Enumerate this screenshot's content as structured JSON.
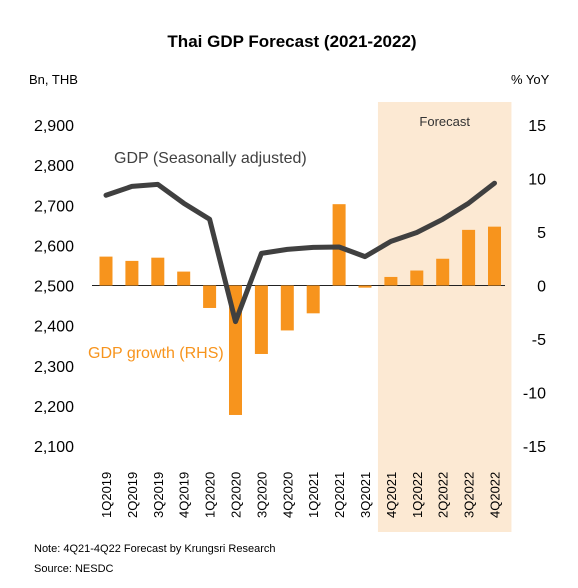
{
  "chart_data": {
    "type": "bar+line",
    "title": "Thai GDP Forecast (2021-2022)",
    "left_axis_unit": "Bn, THB",
    "right_axis_unit": "% YoY",
    "left_ylim": [
      2100,
      2900
    ],
    "left_ticks": [
      "2,900",
      "2,800",
      "2,700",
      "2,600",
      "2,500",
      "2,400",
      "2,300",
      "2,200",
      "2,100"
    ],
    "left_tick_values": [
      2900,
      2800,
      2700,
      2600,
      2500,
      2400,
      2300,
      2200,
      2100
    ],
    "right_ylim": [
      -15,
      15
    ],
    "right_ticks": [
      "15",
      "10",
      "5",
      "0",
      "-5",
      "-10",
      "-15"
    ],
    "right_tick_values": [
      15,
      10,
      5,
      0,
      -5,
      -10,
      -15
    ],
    "categories": [
      "1Q2019",
      "2Q2019",
      "3Q2019",
      "4Q2019",
      "1Q2020",
      "2Q2020",
      "3Q2020",
      "4Q2020",
      "1Q2021",
      "2Q2021",
      "3Q2021",
      "4Q2021",
      "1Q2022",
      "2Q2022",
      "3Q2022",
      "4Q2022"
    ],
    "series": [
      {
        "name": "GDP (Seasonally adjusted)",
        "kind": "line",
        "axis": "left",
        "color": "#404040",
        "values": [
          2725,
          2747,
          2752,
          2705,
          2665,
          2410,
          2580,
          2590,
          2595,
          2596,
          2572,
          2610,
          2632,
          2665,
          2705,
          2755
        ]
      },
      {
        "name": "GDP growth (RHS)",
        "kind": "bar",
        "axis": "right",
        "color": "#F7941D",
        "values": [
          2.7,
          2.3,
          2.6,
          1.3,
          -2.1,
          -12.1,
          -6.4,
          -4.2,
          -2.6,
          7.6,
          -0.2,
          0.8,
          1.4,
          2.5,
          5.2,
          5.5
        ]
      }
    ],
    "forecast_shade": {
      "label": "Forecast",
      "from": "4Q2021",
      "to": "4Q2022",
      "color": "#FCE9D3"
    }
  },
  "notes": {
    "note": "Note: 4Q21-4Q22 Forecast by Krungsri Research",
    "source": "Source:  NESDC"
  }
}
